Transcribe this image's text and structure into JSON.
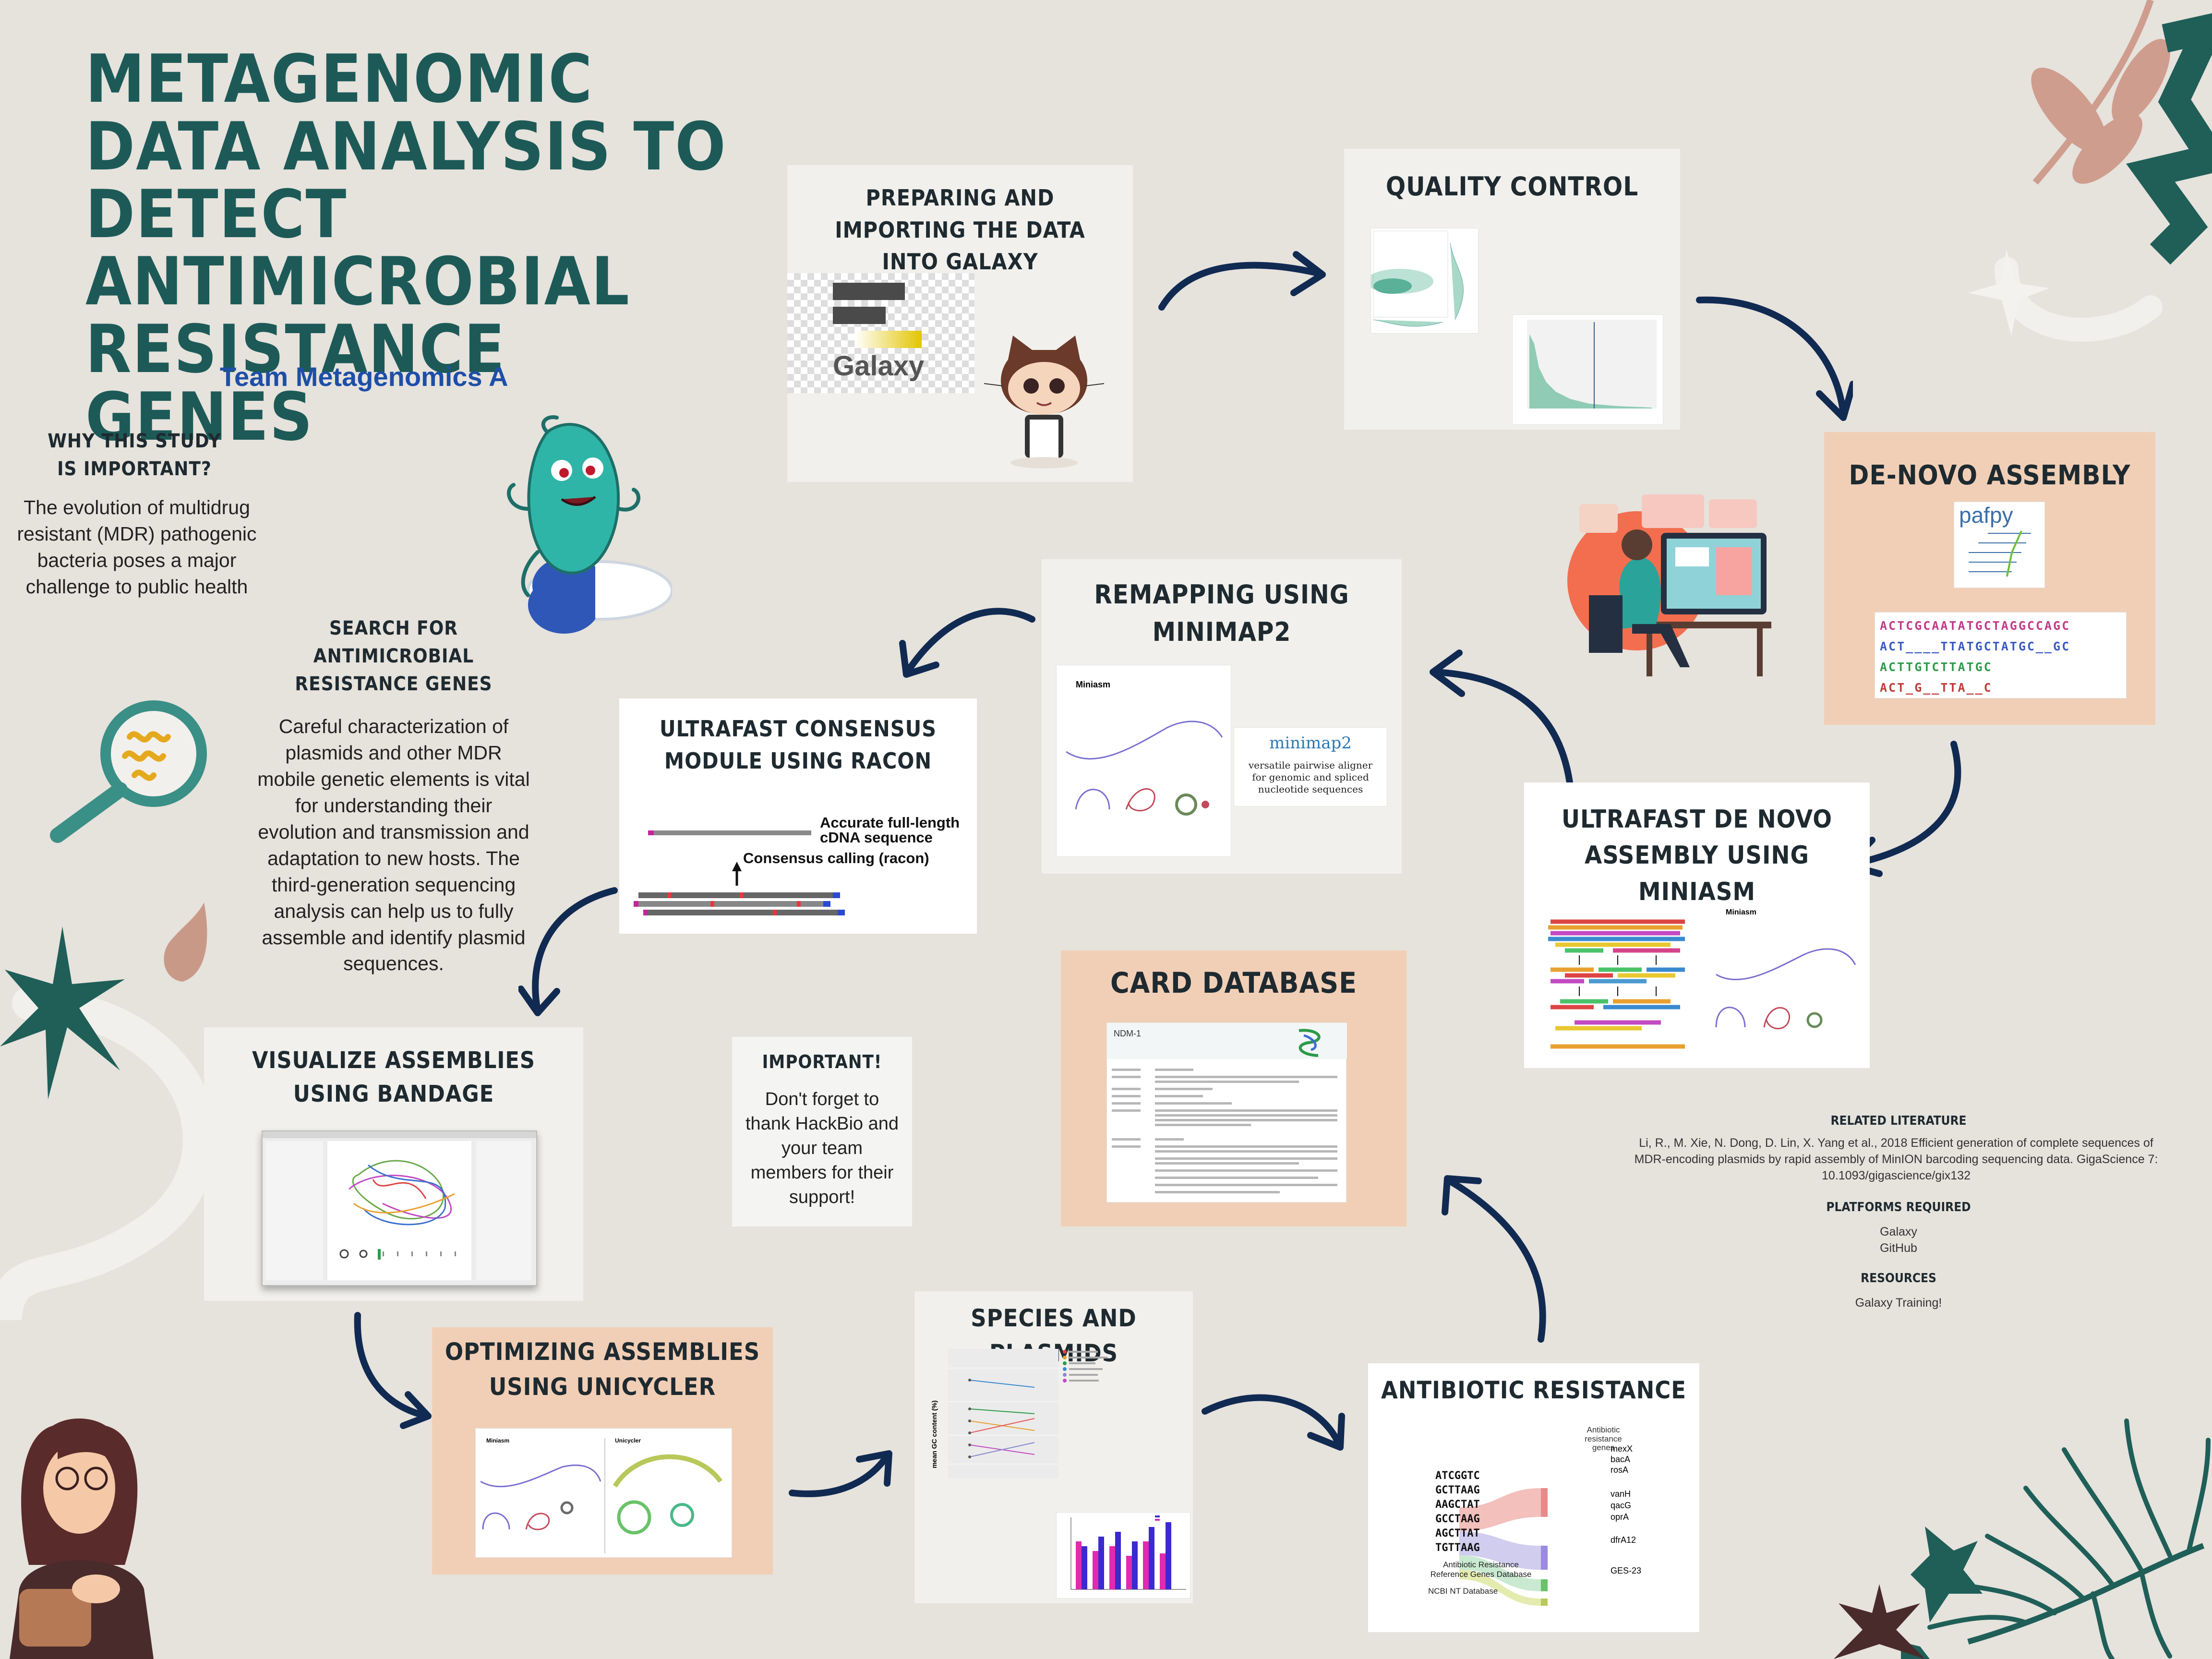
{
  "title": "METAGENOMIC DATA ANALYSIS TO DETECT ANTIMICROBIAL RESISTANCE GENES",
  "team": "Team Metagenomics A",
  "why": {
    "heading": "WHY THIS STUDY IS IMPORTANT?",
    "text": "The evolution of multidrug resistant (MDR) pathogenic bacteria poses a major challenge to public health"
  },
  "search": {
    "heading": "SEARCH FOR ANTIMICROBIAL RESISTANCE GENES",
    "text": "Careful characterization of plasmids and other MDR mobile genetic elements is vital for understanding their evolution and transmission and adaptation to new hosts. The third-generation sequencing analysis can help us to fully assemble and identify plasmid sequences."
  },
  "steps": {
    "prepare": {
      "title": "PREPARING AND IMPORTING THE DATA INTO GALAXY",
      "logo_text": "Galaxy"
    },
    "qc": {
      "title": "QUALITY CONTROL"
    },
    "denovo": {
      "title": "DE-NOVO ASSEMBLY",
      "logo_text": "pafpy",
      "seq_lines": [
        "ACTCGCAATATGCTAGGCCAGC",
        "ACT____TTATGCTATGC__GC",
        "ACTTGTCTTATGC",
        "ACT_G__TTA__C"
      ]
    },
    "remap": {
      "title": "REMAPPING USING MINIMAP2",
      "fig_label": "Miniasm",
      "minimap_name": "minimap2",
      "minimap_desc": "versatile pairwise aligner for genomic and spliced nucleotide sequences"
    },
    "racon": {
      "title": "ULTRAFAST CONSENSUS MODULE USING RACON",
      "label_top": "Accurate full-length cDNA sequence",
      "label_bottom": "Consensus calling (racon)"
    },
    "miniasm": {
      "title": "ULTRAFAST DE NOVO ASSEMBLY USING MINIASM",
      "fig_label": "Miniasm"
    },
    "card": {
      "title": "CARD DATABASE",
      "entry": "NDM-1"
    },
    "bandage": {
      "title": "VISUALIZE ASSEMBLIES USING BANDAGE"
    },
    "unicycler": {
      "title": "OPTIMIZING ASSEMBLIES USING UNICYCLER",
      "label_left": "Miniasm",
      "label_right": "Unicycler"
    },
    "species": {
      "title": "SPECIES AND PLASMIDS",
      "ylabel": "mean GC content (%)"
    },
    "antibiotic": {
      "title": "ANTIBIOTIC RESISTANCE",
      "seqs": [
        "ATCGGTC",
        "GCTTAAG",
        "AAGCTAT",
        "GCCTAAG",
        "AGCTTAT",
        "TGTTAAG"
      ],
      "genes_head": "Antibiotic resistance genes",
      "genes": [
        "mexX",
        "bacA",
        "rosA",
        "vanH",
        "qacG",
        "oprA",
        "dfrA12",
        "GES-23"
      ],
      "db1": "Antibiotic Resistance Reference Genes Database",
      "db2": "NCBI NT Database"
    }
  },
  "important": {
    "heading": "IMPORTANT!",
    "text": "Don't forget to thank HackBio and your team members for their support!"
  },
  "literature": {
    "heading": "RELATED LITERATURE",
    "text": "Li, R., M. Xie, N. Dong, D. Lin, X. Yang et al., 2018 Efficient generation of complete sequences of MDR-encoding plasmids by rapid assembly of MinION barcoding sequencing data. GigaScience 7: 10.1093/gigascience/gix132"
  },
  "platforms": {
    "heading": "PLATFORMS REQUIRED",
    "items": [
      "Galaxy",
      "GitHub"
    ]
  },
  "resources": {
    "heading": "RESOURCES",
    "items": [
      "Galaxy Training!"
    ]
  },
  "colors": {
    "title": "#1d5a57",
    "team": "#1d4fa8",
    "arrow": "#102a52",
    "peach": "#f1cfb6",
    "teal_deco": "#1f5f58",
    "pink_deco": "#cf9d8e"
  }
}
